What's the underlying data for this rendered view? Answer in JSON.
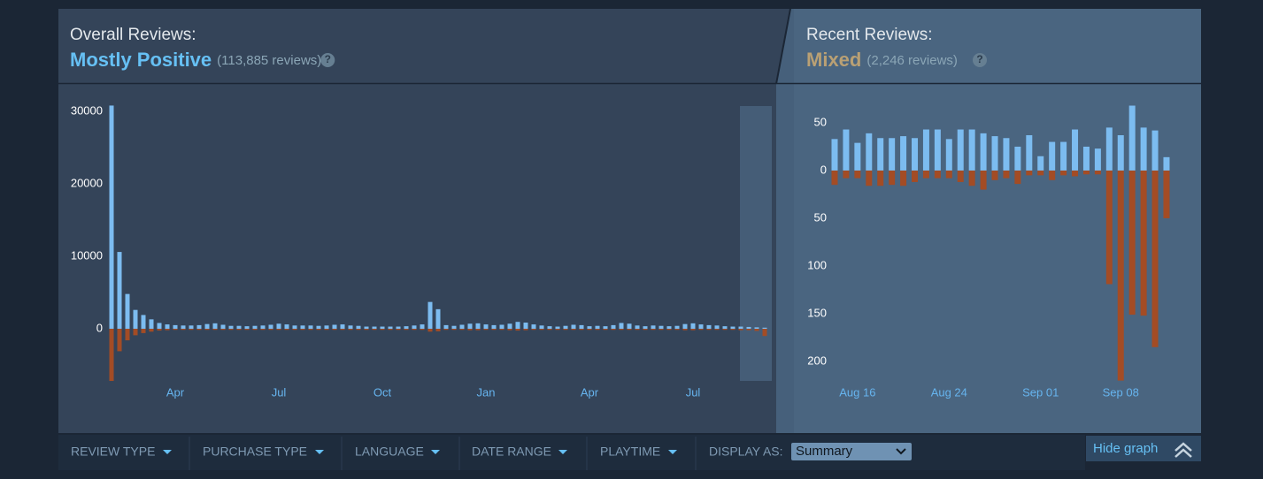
{
  "overall": {
    "label": "Overall Reviews:",
    "rating": "Mostly Positive",
    "count": "(113,885 reviews)",
    "help": "?"
  },
  "recent": {
    "label": "Recent Reviews:",
    "rating": "Mixed",
    "count": "(2,246 reviews)",
    "help": "?"
  },
  "chart_data": [
    {
      "type": "bar",
      "categories": [
        null,
        null,
        null,
        null,
        null,
        null,
        null,
        null,
        "Apr",
        null,
        null,
        null,
        null,
        null,
        null,
        null,
        null,
        null,
        null,
        null,
        null,
        "Jul",
        null,
        null,
        null,
        null,
        null,
        null,
        null,
        null,
        null,
        null,
        null,
        null,
        "Oct",
        null,
        null,
        null,
        null,
        null,
        null,
        null,
        null,
        null,
        null,
        null,
        null,
        "Jan",
        null,
        null,
        null,
        null,
        null,
        null,
        null,
        null,
        null,
        null,
        null,
        null,
        "Apr",
        null,
        null,
        null,
        null,
        null,
        null,
        null,
        null,
        null,
        null,
        null,
        null,
        "Jul",
        null,
        null,
        null,
        null,
        null,
        null,
        null,
        null,
        null
      ],
      "series": [
        {
          "color": "#7cbcf0",
          "values": [
            30800,
            10600,
            4800,
            2600,
            1900,
            1300,
            800,
            600,
            500,
            450,
            450,
            500,
            650,
            750,
            550,
            400,
            400,
            350,
            400,
            450,
            550,
            700,
            600,
            450,
            450,
            450,
            400,
            450,
            550,
            600,
            450,
            400,
            300,
            300,
            300,
            300,
            300,
            350,
            450,
            600,
            3700,
            2700,
            500,
            400,
            550,
            700,
            750,
            600,
            500,
            550,
            700,
            950,
            850,
            600,
            450,
            350,
            300,
            400,
            550,
            500,
            350,
            400,
            350,
            500,
            800,
            700,
            450,
            350,
            450,
            400,
            350,
            400,
            650,
            750,
            600,
            500,
            450,
            350,
            300,
            300,
            250,
            200,
            150
          ]
        },
        {
          "color": "#a34c25",
          "values": [
            -7200,
            -3100,
            -1600,
            -900,
            -600,
            -400,
            -250,
            -200,
            -150,
            -150,
            -150,
            -150,
            -150,
            -150,
            -150,
            -150,
            -150,
            -150,
            -150,
            -150,
            -150,
            -150,
            -150,
            -150,
            -150,
            -150,
            -150,
            -150,
            -150,
            -150,
            -150,
            -150,
            -150,
            -150,
            -150,
            -150,
            -150,
            -150,
            -150,
            -150,
            -400,
            -350,
            -150,
            -150,
            -150,
            -200,
            -200,
            -150,
            -150,
            -150,
            -200,
            -250,
            -200,
            -150,
            -150,
            -150,
            -150,
            -150,
            -150,
            -150,
            -150,
            -150,
            -150,
            -150,
            -150,
            -150,
            -150,
            -150,
            -150,
            -150,
            -150,
            -150,
            -200,
            -200,
            -150,
            -150,
            -150,
            -150,
            -150,
            -200,
            -200,
            -300,
            -1000
          ]
        }
      ],
      "ylim": [
        -8000,
        31000
      ],
      "yticks": [
        0,
        10000,
        20000,
        30000
      ]
    },
    {
      "type": "bar",
      "categories": [
        null,
        null,
        "Aug 16",
        null,
        null,
        null,
        null,
        null,
        null,
        null,
        "Aug 24",
        null,
        null,
        null,
        null,
        null,
        null,
        null,
        "Sep 01",
        null,
        null,
        null,
        null,
        null,
        null,
        "Sep 08",
        null,
        null,
        null,
        null
      ],
      "series": [
        {
          "color": "#7cbcf0",
          "values": [
            33,
            43,
            29,
            39,
            34,
            34,
            36,
            34,
            43,
            43,
            33,
            43,
            43,
            39,
            36,
            34,
            25,
            37,
            15,
            30,
            30,
            43,
            25,
            23,
            45,
            37,
            68,
            45,
            42,
            14
          ]
        },
        {
          "color": "#a34c25",
          "values": [
            -15,
            -8,
            -8,
            -16,
            -16,
            -15,
            -16,
            -12,
            -8,
            -8,
            -8,
            -12,
            -16,
            -20,
            -10,
            -8,
            -14,
            -5,
            -5,
            -10,
            -5,
            -6,
            -4,
            -4,
            -119,
            -220,
            -151,
            -152,
            -185,
            -50
          ]
        }
      ],
      "ylim": [
        -225,
        72
      ],
      "yticks": [
        50,
        0,
        {
          "value": -50,
          "label": "50"
        },
        {
          "value": -100,
          "label": "100"
        },
        {
          "value": -150,
          "label": "150"
        },
        {
          "value": -200,
          "label": "200"
        }
      ]
    }
  ],
  "filters": [
    "REVIEW TYPE",
    "PURCHASE TYPE",
    "LANGUAGE",
    "DATE RANGE",
    "PLAYTIME"
  ],
  "display_as": {
    "label": "DISPLAY AS:",
    "value": "Summary"
  },
  "hide_graph": "Hide graph"
}
